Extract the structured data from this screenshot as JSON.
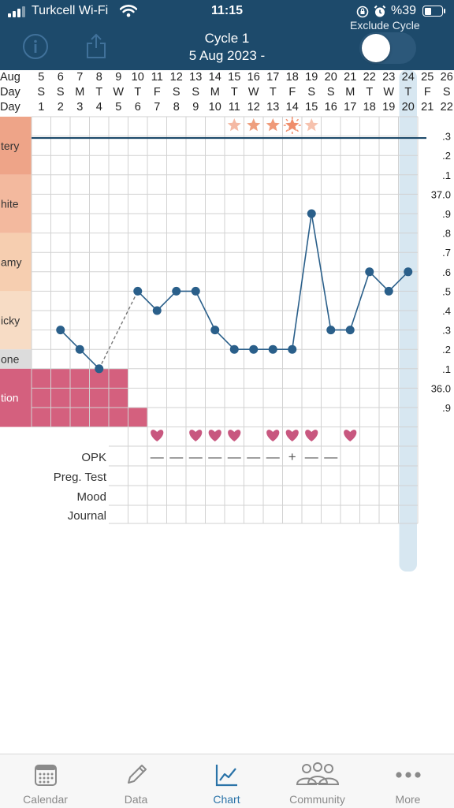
{
  "status_bar": {
    "carrier": "Turkcell Wi-Fi",
    "time": "11:15",
    "battery": "%39",
    "battery_level": 0.39
  },
  "header": {
    "cycle": "Cycle 1",
    "date_range": "5 Aug 2023 -",
    "exclude_label": "Exclude Cycle",
    "exclude_on": false
  },
  "chart": {
    "row_labels": {
      "month": "Aug",
      "weekday": "Day",
      "cycle_day": "Day"
    },
    "dates": [
      "5",
      "6",
      "7",
      "8",
      "9",
      "10",
      "11",
      "12",
      "13",
      "14",
      "15",
      "16",
      "17",
      "18",
      "19",
      "20",
      "21",
      "22",
      "23",
      "24",
      "25",
      "26"
    ],
    "weekdays": [
      "S",
      "S",
      "M",
      "T",
      "W",
      "T",
      "F",
      "S",
      "S",
      "M",
      "T",
      "W",
      "T",
      "F",
      "S",
      "S",
      "M",
      "T",
      "W",
      "T",
      "F",
      "S"
    ],
    "cycle_days": [
      "1",
      "2",
      "3",
      "4",
      "5",
      "6",
      "7",
      "8",
      "9",
      "10",
      "11",
      "12",
      "13",
      "14",
      "15",
      "16",
      "17",
      "18",
      "19",
      "20",
      "21",
      "22"
    ],
    "today_index": 19,
    "y_labels": [
      ".3",
      ".2",
      ".1",
      "37.0",
      ".9",
      ".8",
      ".7",
      ".6",
      ".5",
      ".4",
      ".3",
      ".2",
      ".1",
      "36.0",
      ".9"
    ],
    "y_top_value": 37.3,
    "y_bottom_value": 35.9,
    "cervical_labels": [
      "tery",
      "hite",
      "amy",
      "icky",
      "one",
      "tion"
    ],
    "cervical_colors": [
      "#eea488",
      "#f3b99e",
      "#f6ceb0",
      "#f7dcc5",
      "#dcdcdc",
      "#d4607e"
    ],
    "temperatures": [
      null,
      36.3,
      36.2,
      36.1,
      null,
      36.5,
      36.4,
      36.5,
      36.5,
      36.3,
      36.2,
      36.2,
      36.2,
      36.2,
      36.9,
      36.3,
      36.3,
      36.6,
      36.5,
      36.6
    ],
    "coverline": 37.29,
    "fertile_star_days": [
      10,
      11,
      12,
      13,
      14
    ],
    "ovulation_day": 13,
    "menstruation_flow": [
      2,
      2,
      2,
      2,
      2,
      1
    ],
    "intercourse_days": [
      6,
      8,
      9,
      10,
      12,
      13,
      14,
      16
    ],
    "opk_label": "OPK",
    "opk_symbols": [
      "—",
      "—",
      "—",
      "—",
      "—",
      "—",
      "—",
      "+",
      "—",
      "—"
    ],
    "preg_test_label": "Preg. Test",
    "mood_label": "Mood",
    "journal_label": "Journal",
    "colors": {
      "line": "#2a5f8a",
      "coverline": "#1d4a6b",
      "today": "#d7e7f1",
      "heart": "#c8577f",
      "grid": "#d2d2d2"
    }
  },
  "tabs": [
    {
      "label": "Calendar",
      "icon": "calendar-icon",
      "active": false
    },
    {
      "label": "Data",
      "icon": "pencil-icon",
      "active": false
    },
    {
      "label": "Chart",
      "icon": "chart-icon",
      "active": true
    },
    {
      "label": "Community",
      "icon": "community-icon",
      "active": false
    },
    {
      "label": "More",
      "icon": "more-icon",
      "active": false
    }
  ]
}
